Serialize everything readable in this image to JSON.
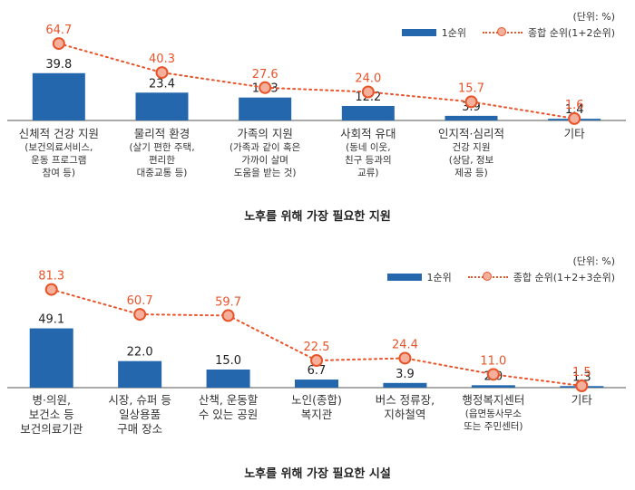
{
  "chart_data": [
    {
      "type": "bar",
      "title": "노후를 위해 가장 필요한 지원",
      "unit": "(단위: %)",
      "series": [
        {
          "name": "1순위",
          "type": "bar",
          "values": [
            39.8,
            23.4,
            19.3,
            12.2,
            3.9,
            1.4
          ]
        },
        {
          "name": "종합 순위(1+2순위)",
          "type": "line",
          "values": [
            64.7,
            40.3,
            27.6,
            24.0,
            15.7,
            1.6
          ]
        }
      ],
      "categories": [
        {
          "main": "신체적 건강 지원",
          "sub": [
            "(보건의료서비스,",
            "운동 프로그램",
            "참여 등)"
          ]
        },
        {
          "main": "물리적 환경",
          "sub": [
            "(살기 편한 주택,",
            "편리한",
            "대중교통 등)"
          ]
        },
        {
          "main": "가족의 지원",
          "sub": [
            "(가족과 같이 혹은",
            "가까이 살며",
            "도움을 받는 것)"
          ]
        },
        {
          "main": "사회적 유대",
          "sub": [
            "(동네 이웃,",
            "친구 등과의",
            "교류)"
          ]
        },
        {
          "main": "인지적·심리적",
          "sub": [
            "건강 지원",
            "(상담, 정보",
            "제공 등)"
          ]
        },
        {
          "main": "기타",
          "sub": []
        }
      ],
      "value_labels": {
        "bar": [
          "39.8",
          "23.4",
          "19.3",
          "12.2",
          "3.9",
          "1.4"
        ],
        "line": [
          "64.7",
          "40.3",
          "27.6",
          "24.0",
          "15.7",
          "1.6"
        ]
      },
      "ylim": [
        0,
        80
      ]
    },
    {
      "type": "bar",
      "title": "노후를 위해 가장 필요한 시설",
      "unit": "(단위: %)",
      "series": [
        {
          "name": "1순위",
          "type": "bar",
          "values": [
            49.1,
            22.0,
            15.0,
            6.7,
            3.9,
            2.0,
            1.3
          ]
        },
        {
          "name": "종합 순위(1+2+3순위)",
          "type": "line",
          "values": [
            81.3,
            60.7,
            59.7,
            22.5,
            24.4,
            11.0,
            1.5
          ]
        }
      ],
      "categories": [
        {
          "main": "병·의원,",
          "sub_lines": [
            "보건소 등",
            "보건의료기관"
          ]
        },
        {
          "main": "시장, 슈퍼 등",
          "sub_lines": [
            "일상용품",
            "구매 장소"
          ]
        },
        {
          "main": "산책, 운동할",
          "sub_lines": [
            "수 있는 공원"
          ]
        },
        {
          "main": "노인(종합)",
          "sub_lines": [
            "복지관"
          ]
        },
        {
          "main": "버스 정류장,",
          "sub_lines": [
            "지하철역"
          ]
        },
        {
          "main": "행정복지센터",
          "sub": [
            "(읍면동사무소",
            "또는 주민센터)"
          ]
        },
        {
          "main": "기타",
          "sub_lines": []
        }
      ],
      "value_labels": {
        "bar": [
          "49.1",
          "22.0",
          "15.0",
          "6.7",
          "3.9",
          "2.0",
          "1.3"
        ],
        "line": [
          "81.3",
          "60.7",
          "59.7",
          "22.5",
          "24.4",
          "11.0",
          "1.5"
        ]
      },
      "ylim": [
        0,
        90
      ]
    }
  ],
  "colors": {
    "bar": "#2467ad",
    "line": "#e8542a",
    "marker_fill": "#f4b09a",
    "axis": "#555555",
    "text": "#333333"
  }
}
